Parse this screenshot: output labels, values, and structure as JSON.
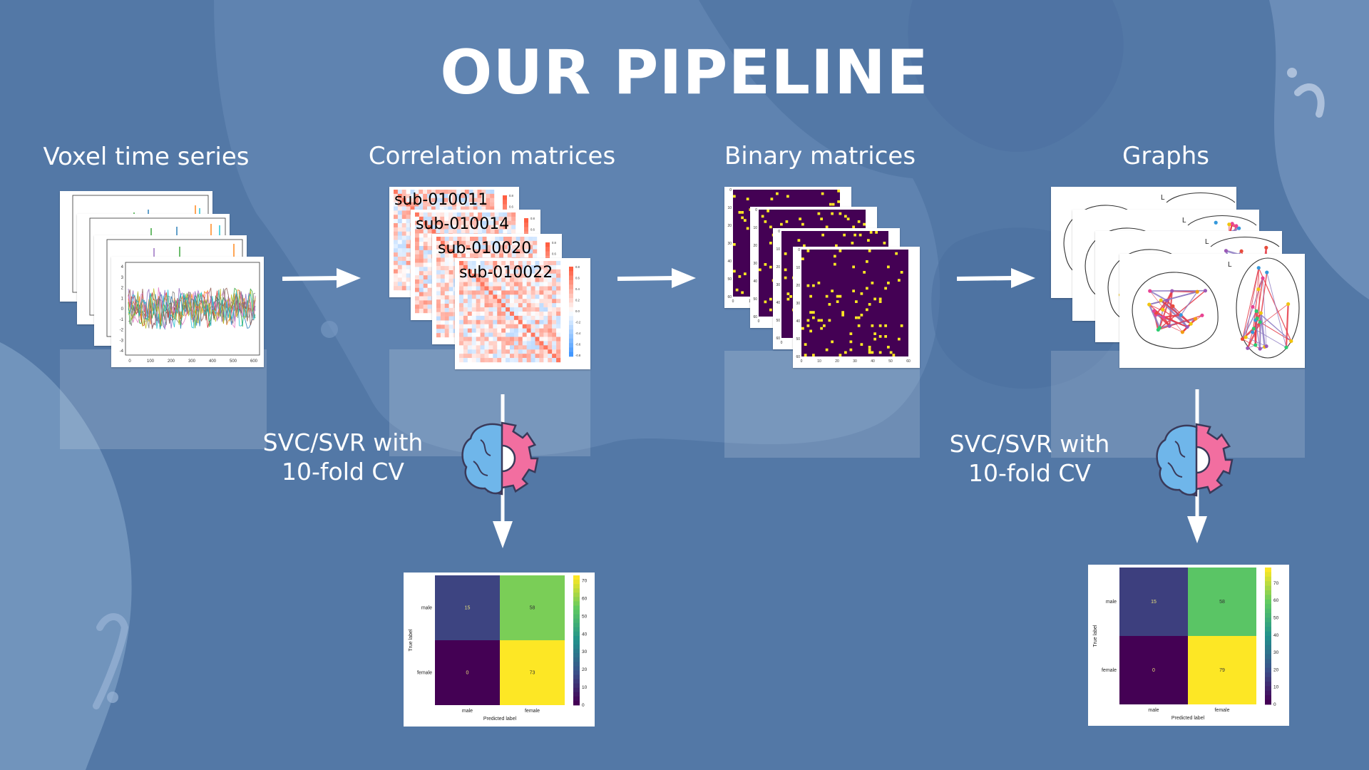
{
  "title": "OUR PIPELINE",
  "stages": [
    {
      "label": "Voxel time series"
    },
    {
      "label": "Correlation matrices"
    },
    {
      "label": "Binary matrices"
    },
    {
      "label": "Graphs"
    }
  ],
  "subjects": [
    "sub-010011",
    "sub-010014",
    "sub-010020",
    "sub-010022"
  ],
  "model_label_line1": "SVC/SVR with",
  "model_label_line2": "10-fold CV",
  "timeseries_axis": {
    "x_ticks": [
      "0",
      "100",
      "200",
      "300",
      "400",
      "500",
      "600"
    ],
    "y_ticks": [
      "4",
      "3",
      "2",
      "1",
      "0",
      "-1",
      "-2",
      "-3",
      "-4"
    ]
  },
  "corr_colorbar_ticks": [
    "0.8",
    "0.6",
    "0.4",
    "0.2",
    "0.0",
    "-0.2",
    "-0.4",
    "-0.6",
    "-0.8"
  ],
  "binary_axis": {
    "ticks": [
      "0",
      "10",
      "20",
      "30",
      "40",
      "50",
      "60"
    ]
  },
  "brain_hemi": {
    "left": "L",
    "right": "R"
  },
  "confusion_matrices": [
    {
      "ylabel": "True label",
      "xlabel": "Predicted label",
      "classes": [
        "male",
        "female"
      ],
      "values": [
        [
          15,
          58
        ],
        [
          0,
          73
        ]
      ],
      "colorbar_ticks": [
        "70",
        "60",
        "50",
        "40",
        "30",
        "20",
        "10",
        "0"
      ]
    },
    {
      "ylabel": "True label",
      "xlabel": "Predicted label",
      "classes": [
        "male",
        "female"
      ],
      "values": [
        [
          15,
          58
        ],
        [
          0,
          79
        ]
      ],
      "colorbar_ticks": [
        "70",
        "60",
        "50",
        "40",
        "30",
        "20",
        "10",
        "0"
      ]
    }
  ],
  "colors": {
    "background": "#5378a6",
    "brain_blue": "#6fb6ea",
    "gear_pink": "#f26ea0",
    "viridis_low": "#440154",
    "viridis_mid": "#3b528b",
    "viridis_green": "#5ec962",
    "viridis_high": "#fde725"
  }
}
